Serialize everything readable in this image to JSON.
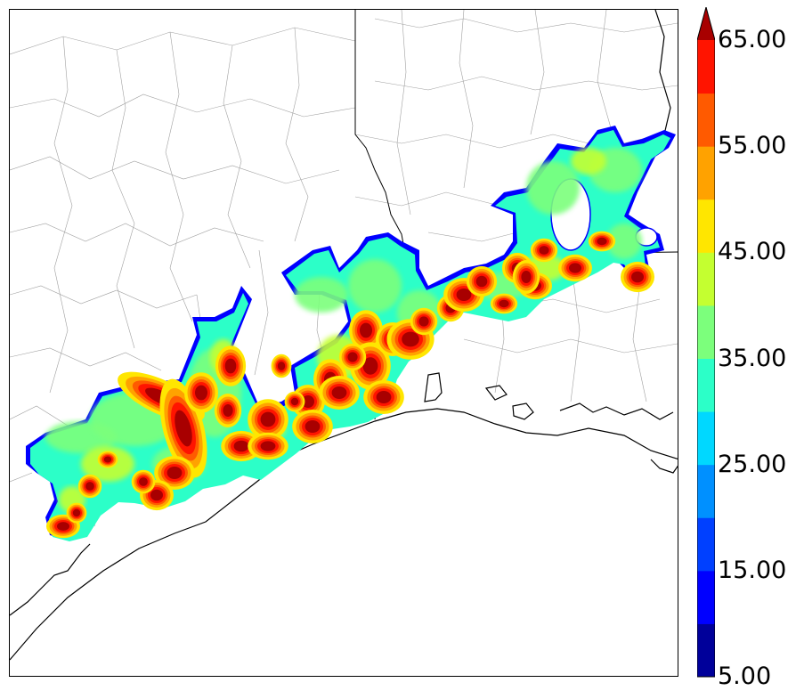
{
  "map": {
    "type": "filled-contour",
    "region": "Gulf Coast (Texas / Louisiana)",
    "levels": [
      5,
      10,
      15,
      20,
      25,
      30,
      35,
      40,
      45,
      50,
      55,
      60,
      65,
      70
    ],
    "colors": [
      "#00009a",
      "#0000ff",
      "#0040ff",
      "#0090ff",
      "#00d8ff",
      "#2cffc8",
      "#7cff7c",
      "#c4ff30",
      "#ffe600",
      "#ffa200",
      "#ff5a00",
      "#ff1400",
      "#a80000"
    ],
    "extend": "max",
    "background": "#ffffff",
    "boundary_color": "#000000",
    "county_color": "#9a9a9a"
  },
  "colorbar": {
    "tick_labels": [
      "5.00",
      "15.00",
      "25.00",
      "35.00",
      "45.00",
      "55.00",
      "65.00"
    ]
  }
}
